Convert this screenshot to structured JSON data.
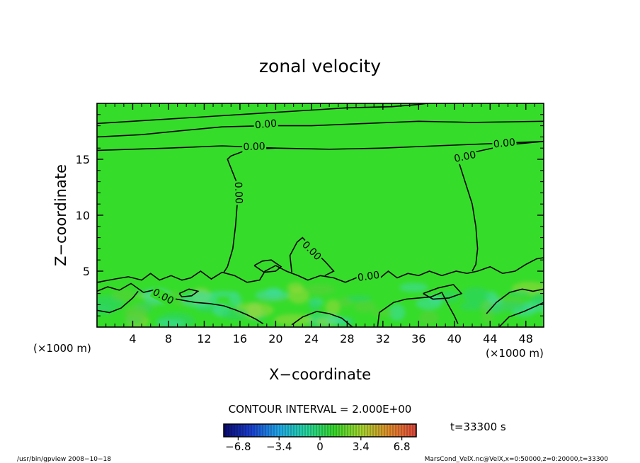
{
  "chart_data": {
    "type": "contour",
    "title": "zonal velocity",
    "xlabel": "X−coordinate",
    "ylabel": "Z−coordinate",
    "x_unit": "(×1000 m)",
    "y_unit": "(×1000 m)",
    "xlim": [
      0,
      50
    ],
    "ylim": [
      0,
      20
    ],
    "x_ticks": [
      4,
      8,
      12,
      16,
      20,
      24,
      28,
      32,
      36,
      40,
      44,
      48
    ],
    "x_tick_labels": [
      "4",
      "8",
      "12",
      "16",
      "20",
      "24",
      "28",
      "32",
      "36",
      "40",
      "44",
      "48"
    ],
    "y_ticks": [
      5,
      10,
      15
    ],
    "y_tick_labels": [
      "5",
      "10",
      "15"
    ],
    "contour_interval_text": "CONTOUR INTERVAL = 2.000E+00",
    "time_text": "t=33300 s",
    "contour_labels": [
      {
        "text": "0.00",
        "x": 18.9,
        "y": 18.1,
        "angle": -5
      },
      {
        "text": "0.00",
        "x": 17.6,
        "y": 16.1,
        "angle": -2
      },
      {
        "text": "0.00",
        "x": 45.6,
        "y": 16.4,
        "angle": -6
      },
      {
        "text": "0.00",
        "x": 41.2,
        "y": 15.2,
        "angle": -12
      },
      {
        "text": "0.00",
        "x": 15.8,
        "y": 12.0,
        "angle": 88
      },
      {
        "text": "0.00",
        "x": 24.0,
        "y": 6.8,
        "angle": 45
      },
      {
        "text": "0.00",
        "x": 30.4,
        "y": 4.5,
        "angle": -8
      },
      {
        "text": "0.00",
        "x": 7.4,
        "y": 2.7,
        "angle": 28
      }
    ],
    "colorbar": {
      "min": -8.0,
      "max": 8.0,
      "tick_values": [
        -6.8,
        -3.4,
        0,
        3.4,
        6.8
      ],
      "tick_labels": [
        "−6.8",
        "−3.4",
        "0",
        "3.4",
        "6.8"
      ],
      "stops": [
        "#0a0a6e",
        "#1a3fd0",
        "#20a8e8",
        "#26d6a0",
        "#36d62c",
        "#a6d630",
        "#e08c2c",
        "#e0463c"
      ]
    },
    "field_color": "#36dc2a",
    "near_surface_colors": [
      "#2bd46e",
      "#3edcaa",
      "#9cd83c",
      "#5ccf3a"
    ]
  },
  "footer": {
    "left": "/usr/bin/gpview   2008−10−18",
    "right": "MarsCond_VelX.nc@VelX,x=0:50000,z=0:20000,t=33300"
  }
}
